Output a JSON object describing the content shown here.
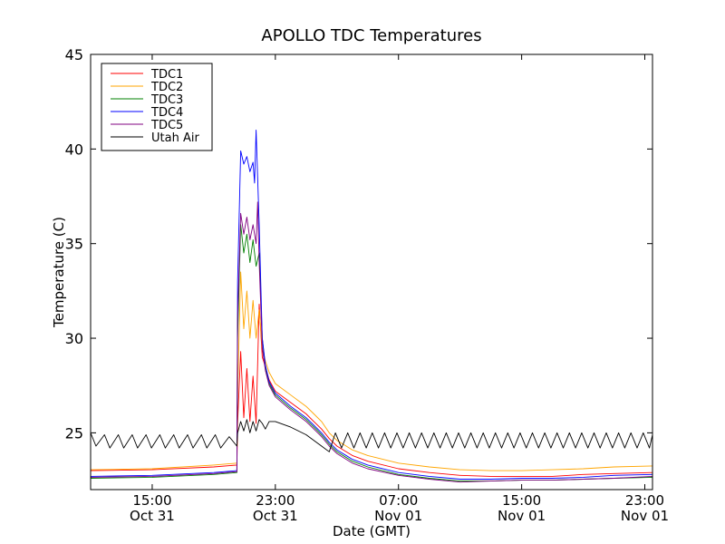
{
  "chart_data": {
    "type": "line",
    "title": "APOLLO TDC Temperatures",
    "xlabel": "Date (GMT)",
    "ylabel": "Temperature (C)",
    "x_unit": "hours since Oct 31 11:00 GMT",
    "xlim": [
      0,
      36.5
    ],
    "ylim": [
      22,
      45
    ],
    "yticks": [
      25,
      30,
      35,
      40,
      45
    ],
    "xticks": [
      {
        "x": 4,
        "time": "15:00",
        "date": "Oct 31"
      },
      {
        "x": 12,
        "time": "23:00",
        "date": "Oct 31"
      },
      {
        "x": 20,
        "time": "07:00",
        "date": "Nov 01"
      },
      {
        "x": 28,
        "time": "15:00",
        "date": "Nov 01"
      },
      {
        "x": 36,
        "time": "23:00",
        "date": "Nov 01"
      }
    ],
    "grid": false,
    "legend_position": "top-left",
    "series": [
      {
        "name": "TDC1",
        "color": "#ff0000",
        "points": [
          [
            0,
            23.0
          ],
          [
            4,
            23.05
          ],
          [
            8,
            23.2
          ],
          [
            9.5,
            23.3
          ],
          [
            9.55,
            25.5
          ],
          [
            9.75,
            29.3
          ],
          [
            9.95,
            25.8
          ],
          [
            10.15,
            28.4
          ],
          [
            10.35,
            25.6
          ],
          [
            10.55,
            28.0
          ],
          [
            10.75,
            25.5
          ],
          [
            10.95,
            31.8
          ],
          [
            11.15,
            29.0
          ],
          [
            11.35,
            28.5
          ],
          [
            11.6,
            27.8
          ],
          [
            12,
            27.2
          ],
          [
            13,
            26.6
          ],
          [
            14,
            26.0
          ],
          [
            14.5,
            25.6
          ],
          [
            15,
            25.2
          ],
          [
            15.5,
            24.7
          ],
          [
            16,
            24.3
          ],
          [
            17,
            23.8
          ],
          [
            18,
            23.5
          ],
          [
            20,
            23.1
          ],
          [
            22,
            22.9
          ],
          [
            24,
            22.75
          ],
          [
            26,
            22.7
          ],
          [
            28,
            22.7
          ],
          [
            30,
            22.7
          ],
          [
            32,
            22.8
          ],
          [
            34,
            22.85
          ],
          [
            36.5,
            22.9
          ]
        ]
      },
      {
        "name": "TDC2",
        "color": "#ffa500",
        "points": [
          [
            0,
            23.05
          ],
          [
            4,
            23.1
          ],
          [
            8,
            23.3
          ],
          [
            9.5,
            23.4
          ],
          [
            9.55,
            27.0
          ],
          [
            9.75,
            33.5
          ],
          [
            9.95,
            30.5
          ],
          [
            10.15,
            32.5
          ],
          [
            10.35,
            30.0
          ],
          [
            10.55,
            32.0
          ],
          [
            10.75,
            30.0
          ],
          [
            10.95,
            31.5
          ],
          [
            11.15,
            29.5
          ],
          [
            11.35,
            28.8
          ],
          [
            11.6,
            28.2
          ],
          [
            12,
            27.6
          ],
          [
            13,
            27.0
          ],
          [
            14,
            26.4
          ],
          [
            14.5,
            26.0
          ],
          [
            15,
            25.6
          ],
          [
            15.5,
            25.0
          ],
          [
            16,
            24.6
          ],
          [
            17,
            24.1
          ],
          [
            18,
            23.8
          ],
          [
            20,
            23.4
          ],
          [
            22,
            23.2
          ],
          [
            24,
            23.05
          ],
          [
            26,
            23.0
          ],
          [
            28,
            23.0
          ],
          [
            30,
            23.05
          ],
          [
            32,
            23.1
          ],
          [
            34,
            23.2
          ],
          [
            36.5,
            23.25
          ]
        ]
      },
      {
        "name": "TDC3",
        "color": "#008000",
        "points": [
          [
            0,
            22.6
          ],
          [
            4,
            22.65
          ],
          [
            8,
            22.8
          ],
          [
            9.5,
            22.9
          ],
          [
            9.55,
            30.0
          ],
          [
            9.75,
            36.0
          ],
          [
            9.95,
            34.5
          ],
          [
            10.15,
            35.5
          ],
          [
            10.35,
            34.0
          ],
          [
            10.55,
            35.2
          ],
          [
            10.75,
            33.8
          ],
          [
            10.95,
            34.5
          ],
          [
            11.15,
            30.0
          ],
          [
            11.35,
            28.5
          ],
          [
            11.6,
            27.6
          ],
          [
            12,
            27.0
          ],
          [
            13,
            26.3
          ],
          [
            14,
            25.7
          ],
          [
            14.5,
            25.3
          ],
          [
            15,
            24.9
          ],
          [
            15.5,
            24.4
          ],
          [
            16,
            24.0
          ],
          [
            17,
            23.5
          ],
          [
            18,
            23.2
          ],
          [
            20,
            22.8
          ],
          [
            22,
            22.6
          ],
          [
            24,
            22.45
          ],
          [
            26,
            22.45
          ],
          [
            28,
            22.5
          ],
          [
            30,
            22.5
          ],
          [
            32,
            22.55
          ],
          [
            34,
            22.6
          ],
          [
            36.5,
            22.65
          ]
        ]
      },
      {
        "name": "TDC4",
        "color": "#0000ff",
        "points": [
          [
            0,
            22.7
          ],
          [
            4,
            22.75
          ],
          [
            8,
            22.9
          ],
          [
            9.5,
            23.0
          ],
          [
            9.55,
            33.0
          ],
          [
            9.75,
            39.9
          ],
          [
            9.95,
            39.2
          ],
          [
            10.15,
            39.6
          ],
          [
            10.35,
            38.8
          ],
          [
            10.55,
            39.3
          ],
          [
            10.65,
            38.2
          ],
          [
            10.75,
            41.0
          ],
          [
            10.85,
            38.5
          ],
          [
            10.95,
            36.0
          ],
          [
            11.15,
            30.0
          ],
          [
            11.35,
            28.6
          ],
          [
            11.6,
            27.7
          ],
          [
            12,
            27.1
          ],
          [
            13,
            26.4
          ],
          [
            14,
            25.8
          ],
          [
            14.5,
            25.4
          ],
          [
            15,
            25.0
          ],
          [
            15.5,
            24.5
          ],
          [
            16,
            24.1
          ],
          [
            17,
            23.6
          ],
          [
            18,
            23.3
          ],
          [
            20,
            22.9
          ],
          [
            22,
            22.7
          ],
          [
            24,
            22.55
          ],
          [
            26,
            22.55
          ],
          [
            28,
            22.6
          ],
          [
            30,
            22.6
          ],
          [
            32,
            22.65
          ],
          [
            34,
            22.75
          ],
          [
            36.5,
            22.8
          ]
        ]
      },
      {
        "name": "TDC5",
        "color": "#800080",
        "points": [
          [
            0,
            22.65
          ],
          [
            4,
            22.7
          ],
          [
            8,
            22.85
          ],
          [
            9.5,
            22.95
          ],
          [
            9.55,
            31.0
          ],
          [
            9.75,
            36.6
          ],
          [
            9.95,
            35.5
          ],
          [
            10.15,
            36.4
          ],
          [
            10.35,
            35.2
          ],
          [
            10.55,
            36.0
          ],
          [
            10.75,
            35.0
          ],
          [
            10.85,
            37.2
          ],
          [
            10.95,
            34.0
          ],
          [
            11.15,
            29.5
          ],
          [
            11.35,
            28.3
          ],
          [
            11.6,
            27.5
          ],
          [
            12,
            26.9
          ],
          [
            13,
            26.2
          ],
          [
            14,
            25.6
          ],
          [
            14.5,
            25.2
          ],
          [
            15,
            24.8
          ],
          [
            15.5,
            24.3
          ],
          [
            16,
            23.9
          ],
          [
            17,
            23.4
          ],
          [
            18,
            23.1
          ],
          [
            20,
            22.75
          ],
          [
            22,
            22.55
          ],
          [
            24,
            22.4
          ],
          [
            26,
            22.45
          ],
          [
            28,
            22.5
          ],
          [
            30,
            22.5
          ],
          [
            32,
            22.55
          ],
          [
            34,
            22.6
          ],
          [
            36.5,
            22.7
          ]
        ]
      },
      {
        "name": "Utah Air",
        "color": "#000000",
        "points": [
          [
            0,
            25.0
          ],
          [
            0.35,
            24.3
          ],
          [
            0.9,
            24.9
          ],
          [
            1.25,
            24.2
          ],
          [
            1.8,
            24.9
          ],
          [
            2.15,
            24.2
          ],
          [
            2.7,
            24.9
          ],
          [
            3.05,
            24.2
          ],
          [
            3.6,
            24.9
          ],
          [
            3.95,
            24.2
          ],
          [
            4.5,
            24.9
          ],
          [
            4.85,
            24.2
          ],
          [
            5.4,
            24.9
          ],
          [
            5.75,
            24.2
          ],
          [
            6.3,
            24.9
          ],
          [
            6.65,
            24.2
          ],
          [
            7.2,
            24.9
          ],
          [
            7.55,
            24.2
          ],
          [
            8.1,
            24.9
          ],
          [
            8.45,
            24.2
          ],
          [
            9.0,
            24.8
          ],
          [
            9.5,
            24.3
          ],
          [
            9.55,
            25.0
          ],
          [
            9.75,
            25.6
          ],
          [
            9.95,
            25.1
          ],
          [
            10.15,
            25.7
          ],
          [
            10.35,
            25.0
          ],
          [
            10.55,
            25.6
          ],
          [
            10.75,
            25.1
          ],
          [
            10.95,
            25.7
          ],
          [
            11.15,
            25.5
          ],
          [
            11.35,
            25.2
          ],
          [
            11.6,
            25.6
          ],
          [
            12,
            25.6
          ],
          [
            13,
            25.3
          ],
          [
            14,
            24.9
          ],
          [
            14.5,
            24.6
          ],
          [
            15,
            24.3
          ],
          [
            15.5,
            24.0
          ],
          [
            15.9,
            25.0
          ],
          [
            16.3,
            24.2
          ],
          [
            16.7,
            25.0
          ],
          [
            17.1,
            24.2
          ],
          [
            17.5,
            25.0
          ],
          [
            17.9,
            24.2
          ],
          [
            18.3,
            25.0
          ],
          [
            18.7,
            24.2
          ],
          [
            19.1,
            25.0
          ],
          [
            19.5,
            24.2
          ],
          [
            19.9,
            25.0
          ],
          [
            20.3,
            24.2
          ],
          [
            20.7,
            25.0
          ],
          [
            21.1,
            24.2
          ],
          [
            21.5,
            25.0
          ],
          [
            21.9,
            24.2
          ],
          [
            22.3,
            25.0
          ],
          [
            22.7,
            24.2
          ],
          [
            23.1,
            25.0
          ],
          [
            23.5,
            24.2
          ],
          [
            23.9,
            25.0
          ],
          [
            24.3,
            24.2
          ],
          [
            24.7,
            25.0
          ],
          [
            25.1,
            24.2
          ],
          [
            25.5,
            25.0
          ],
          [
            25.9,
            24.2
          ],
          [
            26.3,
            25.0
          ],
          [
            26.7,
            24.2
          ],
          [
            27.1,
            25.0
          ],
          [
            27.5,
            24.2
          ],
          [
            27.9,
            25.0
          ],
          [
            28.3,
            24.2
          ],
          [
            28.7,
            25.0
          ],
          [
            29.1,
            24.2
          ],
          [
            29.5,
            25.0
          ],
          [
            29.9,
            24.2
          ],
          [
            30.3,
            25.0
          ],
          [
            30.7,
            24.2
          ],
          [
            31.1,
            25.0
          ],
          [
            31.5,
            24.2
          ],
          [
            31.9,
            25.0
          ],
          [
            32.3,
            24.2
          ],
          [
            32.7,
            25.0
          ],
          [
            33.1,
            24.2
          ],
          [
            33.5,
            25.0
          ],
          [
            33.9,
            24.2
          ],
          [
            34.3,
            25.0
          ],
          [
            34.7,
            24.2
          ],
          [
            35.1,
            25.0
          ],
          [
            35.5,
            24.2
          ],
          [
            35.9,
            25.0
          ],
          [
            36.3,
            24.2
          ],
          [
            36.5,
            24.9
          ]
        ]
      }
    ]
  }
}
